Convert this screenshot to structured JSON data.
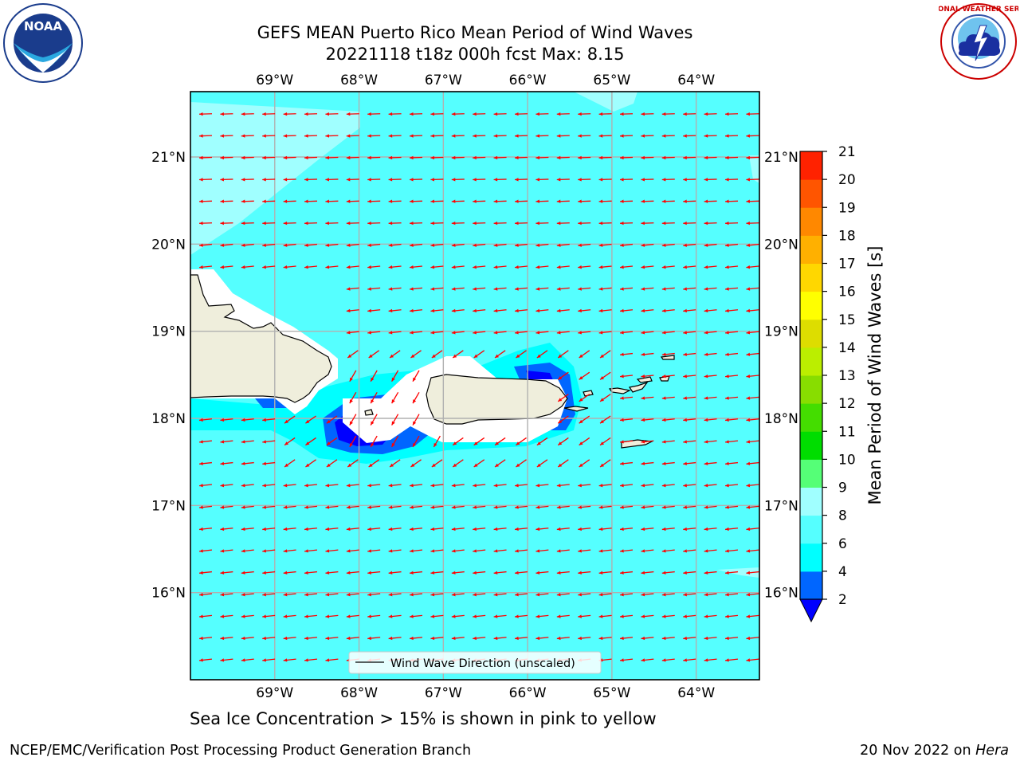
{
  "title_line1": "GEFS MEAN Puerto Rico Mean Period of Wind Waves",
  "title_line2": "20221118 t18z 000h fcst   Max: 8.15",
  "note": "Sea Ice Concentration > 15% is shown in pink to yellow",
  "footer_left": "NCEP/EMC/Verification Post Processing Product Generation Branch",
  "footer_right_date": "20 Nov 2022 on ",
  "footer_right_host": "Hera",
  "logos": {
    "left": "NOAA",
    "right": "NATIONAL WEATHER SERVICE"
  },
  "map": {
    "lon_range": [
      -70,
      -63.25
    ],
    "lat_range": [
      15,
      21.75
    ],
    "lon_ticks": [
      {
        "value": -69,
        "label": "69°W"
      },
      {
        "value": -68,
        "label": "68°W"
      },
      {
        "value": -67,
        "label": "67°W"
      },
      {
        "value": -66,
        "label": "66°W"
      },
      {
        "value": -65,
        "label": "65°W"
      },
      {
        "value": -64,
        "label": "64°W"
      }
    ],
    "lat_ticks": [
      {
        "value": 21,
        "label": "21°N"
      },
      {
        "value": 20,
        "label": "20°N"
      },
      {
        "value": 19,
        "label": "19°N"
      },
      {
        "value": 18,
        "label": "18°N"
      },
      {
        "value": 17,
        "label": "17°N"
      },
      {
        "value": 16,
        "label": "16°N"
      }
    ],
    "grid": true,
    "colors": {
      "ocean": "#55ffff",
      "ocean_light": "#a0ffff",
      "land": "#efeedc",
      "mask": "#ffffff",
      "arrow": "#ff0000",
      "grid": "#b0b0b0"
    },
    "legend_label": "Wind Wave Direction (unscaled)",
    "legend_placement": "bottom-center"
  },
  "colorbar": {
    "title": "Mean Period of Wind Waves [s]",
    "ticks": [
      "2",
      "4",
      "6",
      "8",
      "9",
      "10",
      "11",
      "12",
      "13",
      "14",
      "15",
      "16",
      "17",
      "18",
      "19",
      "20",
      "21"
    ],
    "colors": [
      "#0066ff",
      "#00ffff",
      "#55ffff",
      "#a0ffff",
      "#55ff77",
      "#00dd00",
      "#44dd00",
      "#88dd00",
      "#bbee00",
      "#dddd00",
      "#ffff00",
      "#ffd700",
      "#ffb000",
      "#ff8800",
      "#ff5500",
      "#ff2200"
    ],
    "extend_color": "#0000ff"
  }
}
